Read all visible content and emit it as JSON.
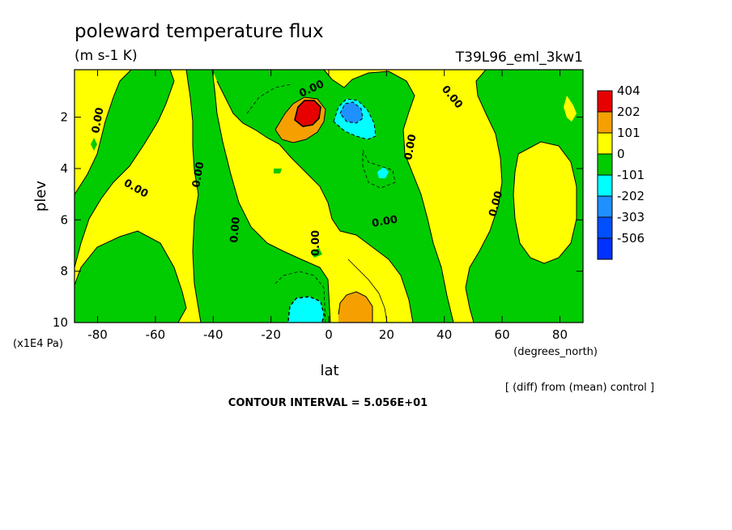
{
  "chart_data": {
    "type": "heatmap",
    "title": "poleward temperature flux",
    "units": "(m s-1 K)",
    "run_label": "T39L96_eml_3kw1",
    "xlabel": "lat",
    "xunits": "(degrees_north)",
    "ylabel": "plev",
    "yunits": "(x1E4 Pa)",
    "xlim": [
      -88,
      88
    ],
    "ylim": [
      10,
      0.15
    ],
    "x_ticks": [
      -80,
      -60,
      -40,
      -20,
      0,
      20,
      40,
      60,
      80
    ],
    "x_tick_labels": [
      "-80",
      "-60",
      "-40",
      "-20",
      "0",
      "20",
      "40",
      "60",
      "80"
    ],
    "y_ticks": [
      2,
      4,
      6,
      8,
      10
    ],
    "y_tick_labels": [
      "2",
      "4",
      "6",
      "8",
      "10"
    ],
    "colorbar": {
      "labels": [
        "404",
        "202",
        "101",
        "0",
        "-101",
        "-202",
        "-303",
        "-506"
      ],
      "colors": [
        "#e60000",
        "#f5a000",
        "#ffff00",
        "#00cc00",
        "#00ffff",
        "#1e90ff",
        "#0050ff",
        "#0032ff"
      ]
    },
    "contour_label": "0.00",
    "contour_interval_text": "CONTOUR INTERVAL = 5.056E+01",
    "subtitle": "[ (diff) from (mean) control ]",
    "grid": false
  }
}
